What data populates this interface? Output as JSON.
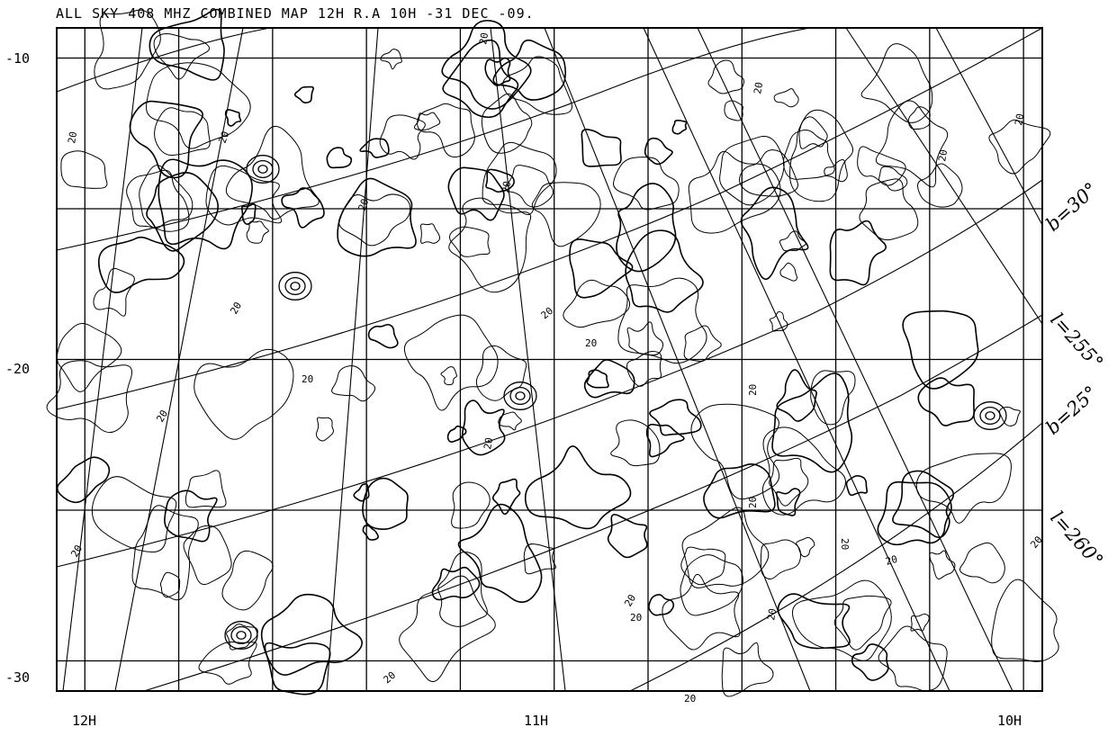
{
  "map": {
    "title": "ALL SKY 408 MHZ COMBINED MAP 12H R.A 10H -31 DEC -09.",
    "ra_ticks": [
      {
        "label": "12H",
        "ra": 12.0
      },
      {
        "label": "11H",
        "ra": 11.0
      },
      {
        "label": "10H",
        "ra": 10.0
      }
    ],
    "dec_ticks": [
      {
        "label": "-10",
        "dec": -10
      },
      {
        "label": "-20",
        "dec": -20
      },
      {
        "label": "-30",
        "dec": -30
      }
    ],
    "ra_range": [
      12.06,
      9.96
    ],
    "dec_range": [
      -9.0,
      -31.0
    ],
    "grid_ra_lines": [
      12.0,
      11.8,
      11.6,
      11.4,
      11.2,
      11.0,
      10.8,
      10.6,
      10.4,
      10.2,
      10.0
    ],
    "grid_dec_lines": [
      -10,
      -15,
      -20,
      -25,
      -30
    ],
    "galactic_labels": [
      {
        "text": "b=30°",
        "kind": "latitude"
      },
      {
        "text": "l=255°",
        "kind": "longitude"
      },
      {
        "text": "b=25°",
        "kind": "latitude"
      },
      {
        "text": "l=260°",
        "kind": "longitude"
      }
    ],
    "contour_level_label": "20"
  }
}
